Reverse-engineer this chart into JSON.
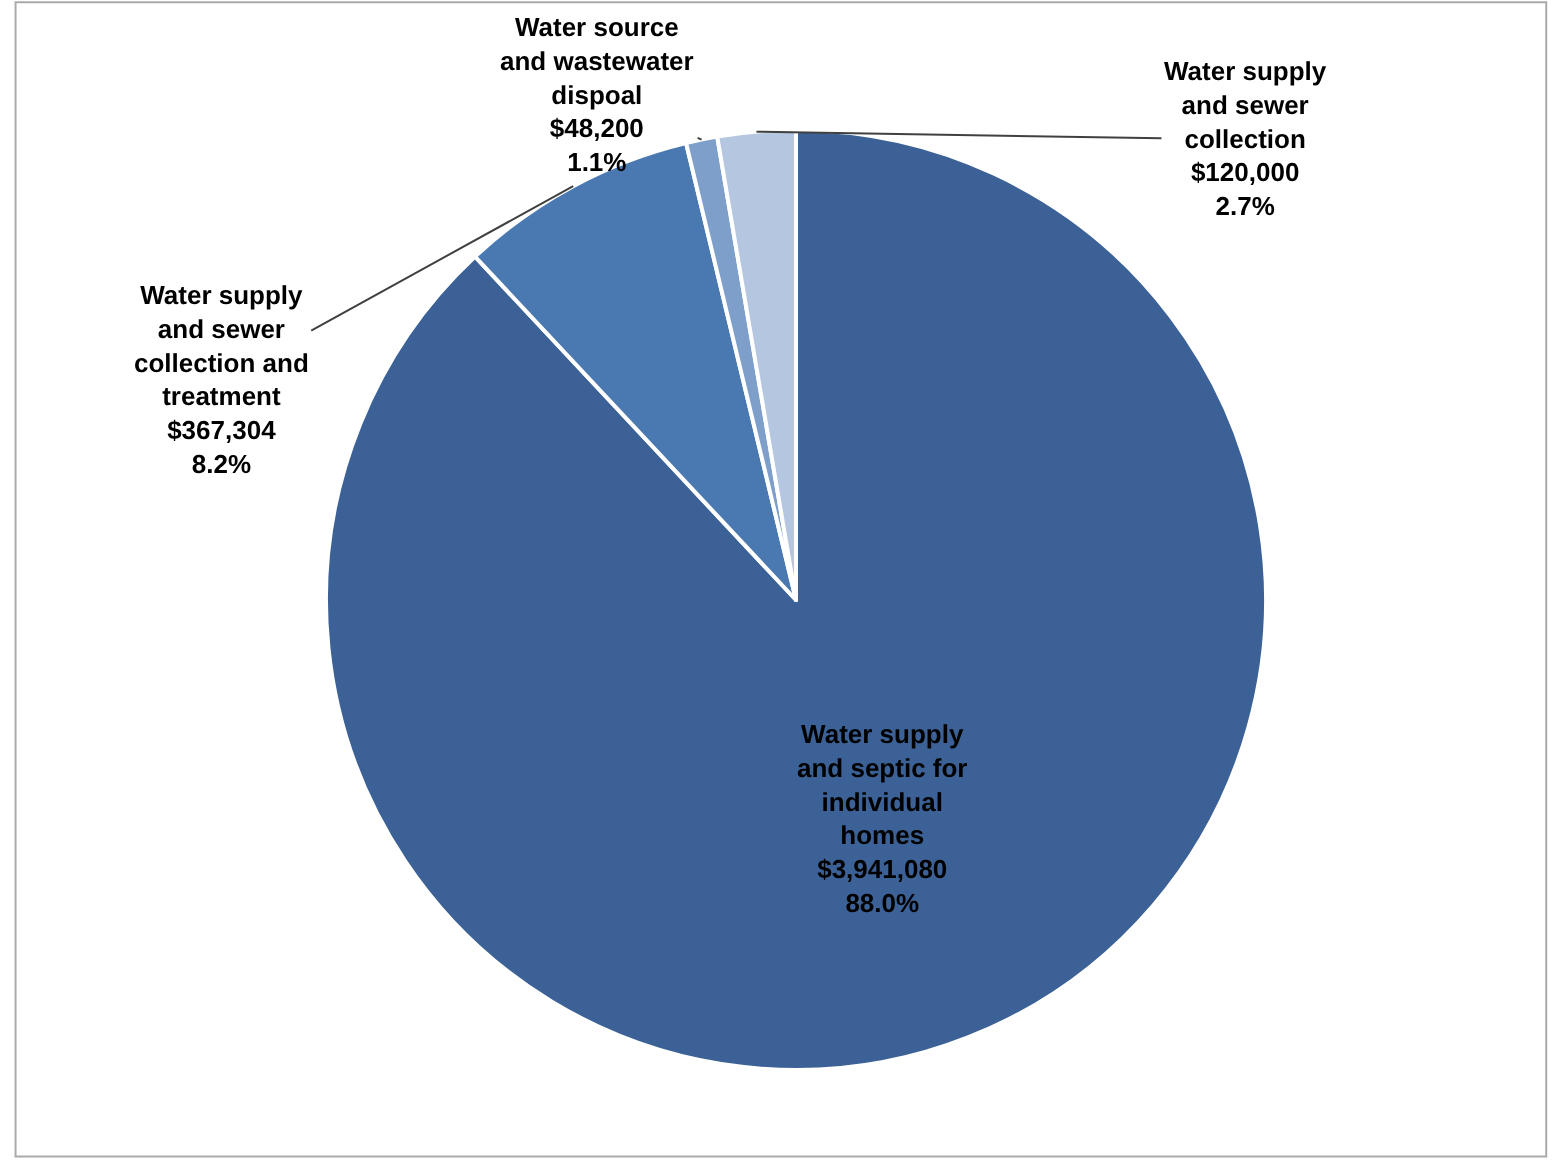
{
  "chart_data": {
    "type": "pie",
    "categories": [
      "Water supply\nand septic for\nindividual\nhomes",
      "Water supply\nand sewer\ncollection and\ntreatment",
      "Water source\nand wastewater\ndispoal",
      "Water supply\nand sewer\ncollection"
    ],
    "values": [
      3941080,
      367304,
      48200,
      120000
    ],
    "value_labels": [
      "$3,941,080\n88.0%",
      "$367,304\n8.2%",
      "$48,200\n1.1%",
      "$120,000\n2.7%"
    ],
    "colors": [
      "#3b6196",
      "#4a78b0",
      "#7f9fcb",
      "#b4c6e0"
    ],
    "legend": false
  }
}
